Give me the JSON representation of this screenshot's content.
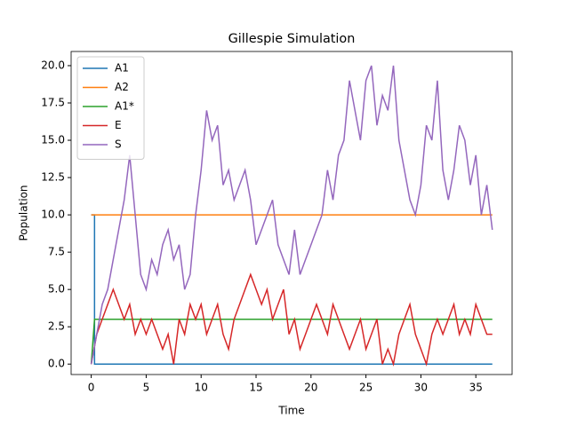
{
  "chart_data": {
    "type": "line",
    "title": "Gillespie Simulation",
    "x_label": "Time",
    "y_label": "Population",
    "xlim": [
      -1.83,
      38.3
    ],
    "ylim": [
      -0.7,
      20.95
    ],
    "xticks": [
      0,
      5,
      10,
      15,
      20,
      25,
      30,
      35
    ],
    "yticks": [
      {
        "value": 0,
        "label": "0.0"
      },
      {
        "value": 2.5,
        "label": "2.5"
      },
      {
        "value": 5,
        "label": "5.0"
      },
      {
        "value": 7.5,
        "label": "7.5"
      },
      {
        "value": 10,
        "label": "10.0"
      },
      {
        "value": 12.5,
        "label": "12.5"
      },
      {
        "value": 15,
        "label": "15.0"
      },
      {
        "value": 17.5,
        "label": "17.5"
      },
      {
        "value": 20,
        "label": "20.0"
      }
    ],
    "legend": "upper left",
    "series": [
      {
        "name": "A1",
        "color": "#1f77b4",
        "x": [
          0,
          0.3,
          0.3,
          36.5
        ],
        "values": [
          10,
          10,
          0,
          0
        ]
      },
      {
        "name": "A2",
        "color": "#ff7f0e",
        "x": [
          0,
          36.5
        ],
        "values": [
          10,
          10
        ]
      },
      {
        "name": "A1*",
        "color": "#2ca02c",
        "x": [
          0,
          0.3,
          36.5
        ],
        "values": [
          0,
          3,
          3
        ]
      },
      {
        "name": "E",
        "color": "#d62728",
        "x": [
          0,
          0.5,
          1,
          1.5,
          2,
          2.5,
          3,
          3.5,
          4,
          4.5,
          5,
          5.5,
          6,
          6.5,
          7,
          7.5,
          8,
          8.5,
          9,
          9.5,
          10,
          10.5,
          11,
          11.5,
          12,
          12.5,
          13,
          13.5,
          14,
          14.5,
          15,
          15.5,
          16,
          16.5,
          17,
          17.5,
          18,
          18.5,
          19,
          19.5,
          20,
          20.5,
          21,
          21.5,
          22,
          22.5,
          23,
          23.5,
          24,
          24.5,
          25,
          25.5,
          26,
          26.5,
          27,
          27.5,
          28,
          28.5,
          29,
          29.5,
          30,
          30.5,
          31,
          31.5,
          32,
          32.5,
          33,
          33.5,
          34,
          34.5,
          35,
          35.5,
          36,
          36.5
        ],
        "values": [
          0,
          2,
          3,
          4,
          5,
          4,
          3,
          4,
          2,
          3,
          2,
          3,
          2,
          1,
          2,
          0,
          3,
          2,
          4,
          3,
          4,
          2,
          3,
          4,
          2,
          1,
          3,
          4,
          5,
          6,
          5,
          4,
          5,
          3,
          4,
          5,
          2,
          3,
          1,
          2,
          3,
          4,
          3,
          2,
          4,
          3,
          2,
          1,
          2,
          3,
          1,
          2,
          3,
          0,
          1,
          0,
          2,
          3,
          4,
          2,
          1,
          0,
          2,
          3,
          2,
          3,
          4,
          2,
          3,
          2,
          4,
          3,
          2,
          2
        ]
      },
      {
        "name": "S",
        "color": "#9467bd",
        "x": [
          0,
          0.5,
          1,
          1.5,
          2,
          2.5,
          3,
          3.5,
          4,
          4.5,
          5,
          5.5,
          6,
          6.5,
          7,
          7.5,
          8,
          8.5,
          9,
          9.5,
          10,
          10.5,
          11,
          11.5,
          12,
          12.5,
          13,
          13.5,
          14,
          14.5,
          15,
          15.5,
          16,
          16.5,
          17,
          17.5,
          18,
          18.5,
          19,
          19.5,
          20,
          20.5,
          21,
          21.5,
          22,
          22.5,
          23,
          23.5,
          24,
          24.5,
          25,
          25.5,
          26,
          26.5,
          27,
          27.5,
          28,
          28.5,
          29,
          29.5,
          30,
          30.5,
          31,
          31.5,
          32,
          32.5,
          33,
          33.5,
          34,
          34.5,
          35,
          35.5,
          36,
          36.5
        ],
        "values": [
          0,
          2,
          4,
          5,
          7,
          9,
          11,
          14,
          10,
          6,
          5,
          7,
          6,
          8,
          9,
          7,
          8,
          5,
          6,
          10,
          13,
          17,
          15,
          16,
          12,
          13,
          11,
          12,
          13,
          11,
          8,
          9,
          10,
          11,
          8,
          7,
          6,
          9,
          6,
          7,
          8,
          9,
          10,
          13,
          11,
          14,
          15,
          19,
          17,
          15,
          19,
          20,
          16,
          18,
          17,
          20,
          15,
          13,
          11,
          10,
          12,
          16,
          15,
          19,
          13,
          11,
          13,
          16,
          15,
          12,
          14,
          10,
          12,
          9
        ]
      }
    ]
  }
}
